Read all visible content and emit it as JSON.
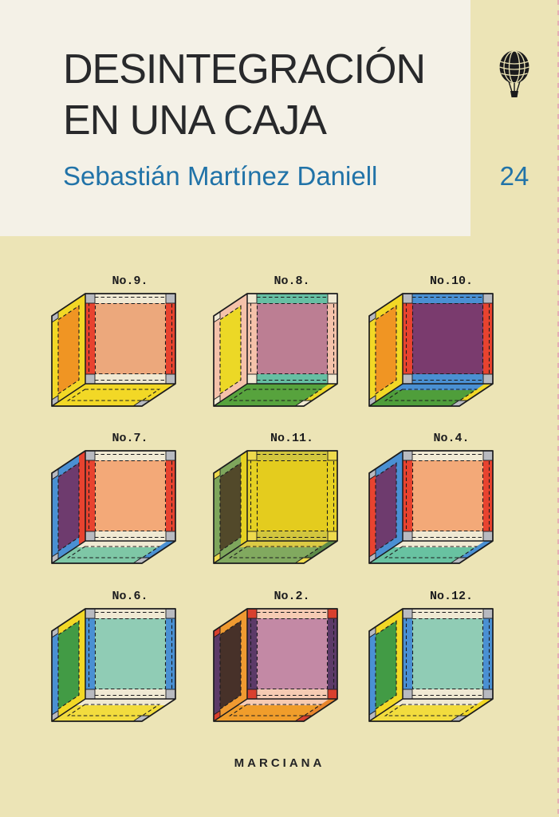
{
  "cover": {
    "title_line1": "DESINTEGRACIÓN",
    "title_line2": "EN UNA CAJA",
    "author": "Sebastián Martínez Daniell",
    "collection_number": "24",
    "publisher": "MARCIANA",
    "logo_icon": "hot-air-balloon-icon",
    "colors": {
      "background": "#ece4b6",
      "panel": "#f4f1e7",
      "title_ink": "#28292b",
      "accent_blue": "#2173a8",
      "line_ink": "#1b1b1d"
    }
  },
  "cubes": [
    {
      "label": "No.9.",
      "front": {
        "lr": "#e8432f",
        "tb": "#f0e9d3",
        "center": "#eca87c",
        "corner": "#b8bac0"
      },
      "side": {
        "base": "#f2d826",
        "center": "#f09523"
      },
      "bottom": {
        "main": "#f2d826"
      }
    },
    {
      "label": "No.8.",
      "front": {
        "lr": "#f5c2aa",
        "tb": "#66bfa3",
        "center": "#bc7e93",
        "corner": "#f0e9d3"
      },
      "side": {
        "base": "#f5c2aa",
        "center": "#ecd826"
      },
      "bottom": {
        "main": "#57a33d",
        "accent": "#ecd826"
      }
    },
    {
      "label": "No.10.",
      "front": {
        "lr": "#e8432f",
        "tb": "#4a90d3",
        "center": "#7a3b6e",
        "corner": "#b8bac0"
      },
      "side": {
        "base": "#f2d826",
        "center": "#f09523"
      },
      "bottom": {
        "main": "#4f9e3b",
        "near": "#4a90d3",
        "accent": "#f2d826"
      }
    },
    {
      "label": "No.7.",
      "front": {
        "lr": "#e8432f",
        "tb": "#f0e9d3",
        "center": "#f3a978",
        "corner": "#b8bac0"
      },
      "side": {
        "base": "#4a90d3",
        "center": "#6e3b6e",
        "right_strip": "#e8432f"
      },
      "bottom": {
        "main": "#7ec7a6",
        "near": "#f0e9d3",
        "accent": "#4a90d3"
      }
    },
    {
      "label": "No.11.",
      "front": {
        "lr": "#e6d122",
        "tb": "#d2c63e",
        "center": "#e4cc1e",
        "corner": "#eeda4d"
      },
      "side": {
        "base": "#7ea65c",
        "center": "#52492a",
        "right_strip": "#e6d122"
      },
      "bottom": {
        "main": "#81a95f",
        "near": "#dcca45",
        "accent": "#5d8a47"
      }
    },
    {
      "label": "No.4.",
      "front": {
        "lr": "#e8432f",
        "tb": "#f0e9d3",
        "center": "#f3a978",
        "corner": "#b8bac0"
      },
      "side": {
        "base": "#4a90d3",
        "center": "#6e3b6e",
        "left_strip": "#e8432f"
      },
      "bottom": {
        "main": "#68c2a1",
        "near": "#f0e9d3",
        "accent": "#4a90d3"
      }
    },
    {
      "label": "No.6.",
      "front": {
        "lr": "#4a90d3",
        "tb": "#f0e9d3",
        "center": "#90ccb5",
        "corner": "#b8bac0"
      },
      "side": {
        "base": "#f2d826",
        "center": "#429b45",
        "left_strip": "#4a90d3"
      },
      "bottom": {
        "main": "#f2dc3e",
        "near": "#f0e9d3"
      }
    },
    {
      "label": "No.2.",
      "front": {
        "lr": "#5c3a68",
        "tb": "#f6cbb3",
        "center": "#c389a5",
        "corner": "#d8402e"
      },
      "side": {
        "base": "#ef9a31",
        "center": "#473129",
        "left_strip": "#5c3a68"
      },
      "bottom": {
        "main": "#f09d2b",
        "near": "#f6cbb3",
        "accent": "#e8852c"
      }
    },
    {
      "label": "No.12.",
      "front": {
        "lr": "#4a90d3",
        "tb": "#f0e9d3",
        "center": "#90ccb5",
        "corner": "#b8bac0"
      },
      "side": {
        "base": "#f2d826",
        "center": "#429b45",
        "left_strip": "#4a90d3"
      },
      "bottom": {
        "main": "#f2dc3e",
        "near": "#f0e9d3",
        "accent": "#f2d826"
      }
    }
  ]
}
